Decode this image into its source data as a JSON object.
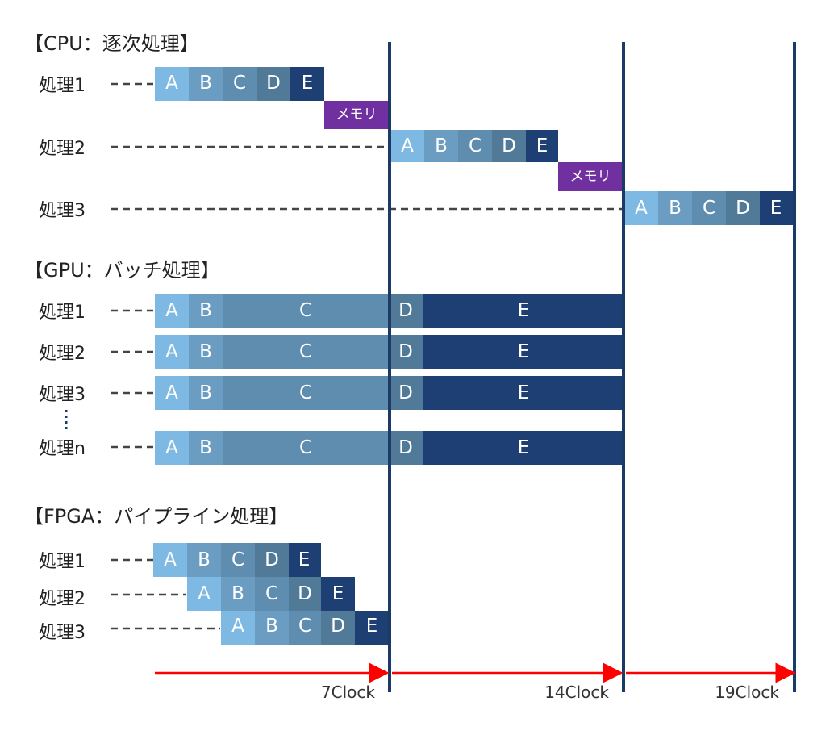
{
  "sections": {
    "cpu_title": "【CPU：逐次処理】",
    "gpu_title": "【GPU：バッチ処理】",
    "fpga_title": "【FPGA：パイプライン処理】"
  },
  "cpu_rows": [
    "処理1",
    "処理2",
    "処理3"
  ],
  "gpu_rows": [
    "処理1",
    "処理2",
    "処理3",
    "処理n"
  ],
  "fpga_rows": [
    "処理1",
    "処理2",
    "処理3"
  ],
  "stages": [
    "A",
    "B",
    "C",
    "D",
    "E"
  ],
  "memory_label": "メモリ",
  "clock_labels": [
    "7Clock",
    "14Clock",
    "19Clock"
  ],
  "colors": {
    "stage_a": "#7db9e2",
    "stage_b": "#6b9cc2",
    "stage_c": "#5f8db0",
    "stage_d": "#517a98",
    "stage_e": "#1e3f73",
    "memory": "#7030a0",
    "divider": "#1b3a66",
    "arrow": "#ff0000"
  }
}
